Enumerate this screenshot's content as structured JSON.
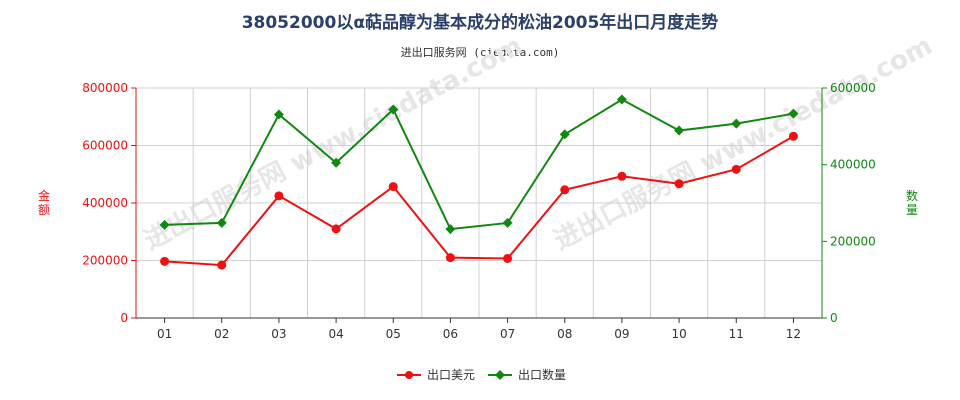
{
  "header": {
    "title": "38052000以α萜品醇为基本成分的松油2005年出口月度走势",
    "subtitle": "进出口服务网 (ciedata.com)"
  },
  "watermark": "进出口服务网 www.ciedata.com",
  "colors": {
    "amount": "#ee1111",
    "quantity": "#118811",
    "grid": "#d0d0d0",
    "axis": "#333333"
  },
  "chart_data": {
    "type": "line",
    "title": "38052000以α萜品醇为基本成分的松油2005年出口月度走势",
    "subtitle": "进出口服务网 (ciedata.com)",
    "categories": [
      "01",
      "02",
      "03",
      "04",
      "05",
      "06",
      "07",
      "08",
      "09",
      "10",
      "11",
      "12"
    ],
    "y_left": {
      "label": "金额",
      "ylim": [
        0,
        800000
      ],
      "ticks": [
        "0",
        "200000",
        "400000",
        "600000",
        "800000"
      ]
    },
    "y_right": {
      "label": "数量",
      "ylim": [
        0,
        600000
      ],
      "ticks": [
        "0",
        "200000",
        "400000",
        "600000"
      ]
    },
    "series": [
      {
        "name": "出口美元",
        "axis": "left",
        "marker": "circle",
        "values": [
          197000,
          184000,
          425000,
          310000,
          457000,
          210000,
          207000,
          446000,
          493000,
          467000,
          517000,
          632000
        ]
      },
      {
        "name": "出口数量",
        "axis": "right",
        "marker": "diamond",
        "values": [
          243000,
          248000,
          531000,
          405000,
          544000,
          232000,
          248000,
          479000,
          570000,
          489000,
          507000,
          533000
        ]
      }
    ],
    "grid": true,
    "legend": "bottom-center"
  }
}
